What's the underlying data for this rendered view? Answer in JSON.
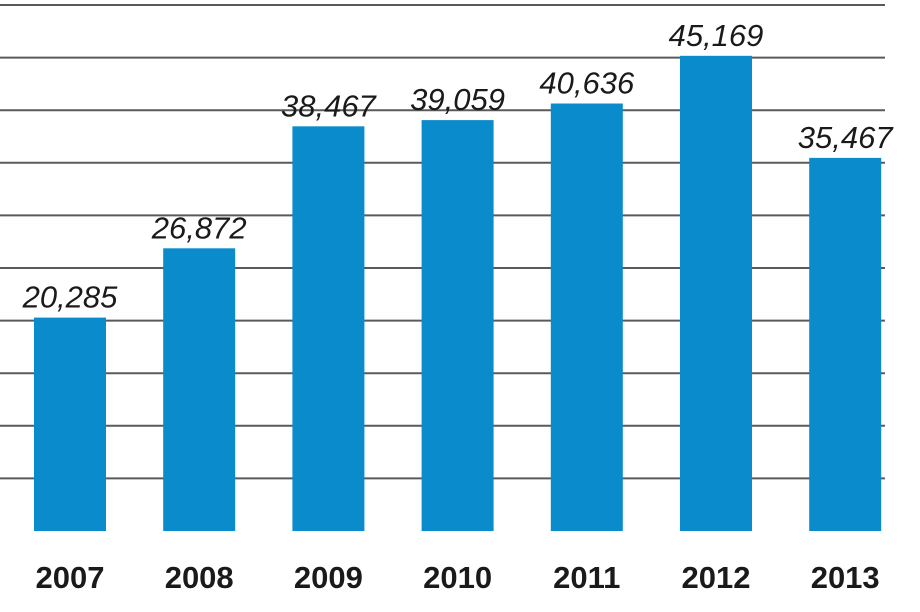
{
  "chart_data": {
    "type": "bar",
    "categories": [
      "2007",
      "2008",
      "2009",
      "2010",
      "2011",
      "2012",
      "2013"
    ],
    "values": [
      20285,
      26872,
      38467,
      39059,
      40636,
      45169,
      35467
    ],
    "value_labels": [
      "20,285",
      "26,872",
      "38,467",
      "39,059",
      "40,636",
      "45,169",
      "35,467"
    ],
    "title": "",
    "xlabel": "",
    "ylabel": "",
    "ylim": [
      0,
      50000
    ],
    "grid": true,
    "grid_step": 5000,
    "bar_color": "#0a8ccc",
    "grid_color": "#5a5a5a"
  }
}
